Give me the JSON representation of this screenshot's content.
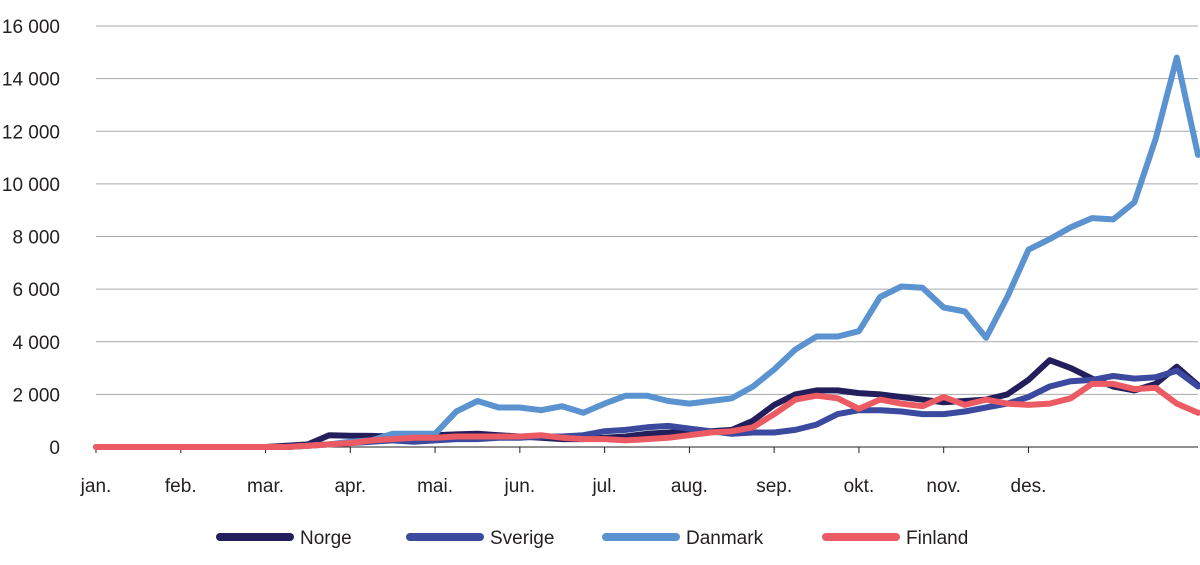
{
  "chart_data": {
    "type": "line",
    "title": "",
    "xlabel": "",
    "ylabel": "",
    "ylim": [
      0,
      16000
    ],
    "yticks": [
      0,
      2000,
      4000,
      6000,
      8000,
      10000,
      12000,
      14000,
      16000
    ],
    "ytick_labels": [
      "0",
      "2 000",
      "4 000",
      "6 000",
      "8 000",
      "10 000",
      "12 000",
      "14 000",
      "16 000"
    ],
    "xlim": [
      1,
      53
    ],
    "x_tick_labels": [
      "jan.",
      "feb.",
      "mar.",
      "apr.",
      "mai.",
      "jun.",
      "jul.",
      "aug.",
      "sep.",
      "okt.",
      "nov.",
      "des."
    ],
    "x_tick_weeks": [
      1,
      5,
      9,
      13,
      17,
      21,
      25,
      29,
      33,
      37,
      41,
      45
    ],
    "grid": "horizontal",
    "legend_position": "bottom",
    "x": [
      1,
      2,
      3,
      4,
      5,
      6,
      7,
      8,
      9,
      10,
      11,
      12,
      13,
      14,
      15,
      16,
      17,
      18,
      19,
      20,
      21,
      22,
      23,
      24,
      25,
      26,
      27,
      28,
      29,
      30,
      31,
      32,
      33,
      34,
      35,
      36,
      37,
      38,
      39,
      40,
      41,
      42,
      43,
      44,
      45,
      46,
      47,
      48,
      49,
      50,
      51,
      52,
      53
    ],
    "series": [
      {
        "name": "Norge",
        "color": "#231f5c",
        "values": [
          0,
          0,
          0,
          0,
          0,
          0,
          0,
          0,
          0,
          50,
          100,
          450,
          430,
          420,
          400,
          400,
          450,
          480,
          500,
          450,
          400,
          350,
          300,
          300,
          350,
          400,
          500,
          550,
          550,
          600,
          650,
          1000,
          1600,
          2000,
          2150,
          2150,
          2050,
          2000,
          1900,
          1800,
          1700,
          1750,
          1800,
          2000,
          2550,
          3300,
          3000,
          2600,
          2300,
          2150,
          2400,
          3050,
          2350
        ]
      },
      {
        "name": "Sverige",
        "color": "#3b4a9e",
        "values": [
          0,
          0,
          0,
          0,
          0,
          0,
          0,
          0,
          0,
          0,
          50,
          100,
          150,
          200,
          250,
          200,
          250,
          300,
          300,
          350,
          350,
          400,
          400,
          450,
          600,
          650,
          750,
          800,
          700,
          600,
          500,
          550,
          550,
          650,
          850,
          1250,
          1400,
          1400,
          1350,
          1250,
          1250,
          1350,
          1500,
          1650,
          1900,
          2300,
          2500,
          2550,
          2700,
          2600,
          2650,
          2900,
          2300
        ]
      },
      {
        "name": "Danmark",
        "color": "#5b93d1",
        "values": [
          0,
          0,
          0,
          0,
          0,
          0,
          0,
          0,
          0,
          0,
          50,
          100,
          200,
          250,
          500,
          500,
          500,
          1350,
          1750,
          1500,
          1500,
          1400,
          1550,
          1300,
          1650,
          1950,
          1950,
          1750,
          1650,
          1750,
          1850,
          2300,
          2950,
          3700,
          4200,
          4200,
          4400,
          5700,
          6100,
          6050,
          5300,
          5150,
          4150,
          5700,
          7500,
          7900,
          8350,
          8700,
          8650,
          9300,
          11700,
          14800,
          11100
        ]
      },
      {
        "name": "Finland",
        "color": "#ec5b64",
        "values": [
          0,
          0,
          0,
          0,
          0,
          0,
          0,
          0,
          0,
          0,
          50,
          100,
          150,
          250,
          300,
          350,
          350,
          400,
          400,
          400,
          400,
          450,
          350,
          300,
          300,
          250,
          300,
          350,
          450,
          550,
          600,
          750,
          1250,
          1800,
          1950,
          1850,
          1450,
          1800,
          1650,
          1550,
          1900,
          1600,
          1800,
          1650,
          1600,
          1650,
          1850,
          2400,
          2400,
          2200,
          2250,
          1650,
          1300
        ]
      }
    ]
  }
}
